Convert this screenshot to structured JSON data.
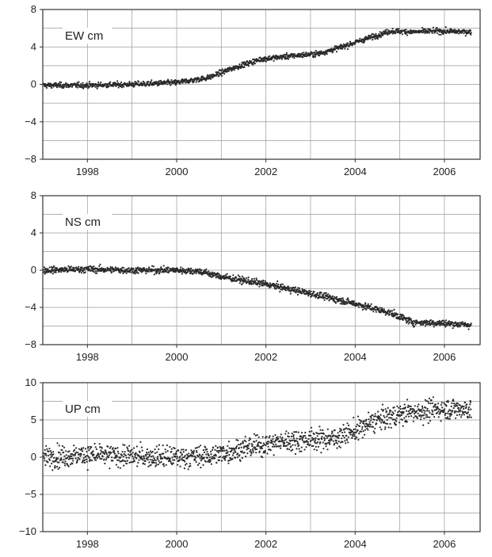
{
  "chart_data": [
    {
      "type": "scatter",
      "label": "EW cm",
      "xlim": [
        1997.0,
        2006.8
      ],
      "ylim": [
        -8,
        8
      ],
      "yticks": [
        8,
        4,
        0,
        -4,
        -8
      ],
      "xticks": [
        1998,
        2000,
        2002,
        2004,
        2006
      ],
      "grid": true,
      "color": "#2a2a2a",
      "noise": 0.2,
      "trend": [
        {
          "x": 1997.0,
          "y": -0.1
        },
        {
          "x": 1998.0,
          "y": -0.1
        },
        {
          "x": 1999.0,
          "y": 0.0
        },
        {
          "x": 2000.0,
          "y": 0.2
        },
        {
          "x": 2000.7,
          "y": 0.7
        },
        {
          "x": 2001.3,
          "y": 1.8
        },
        {
          "x": 2001.9,
          "y": 2.7
        },
        {
          "x": 2002.5,
          "y": 3.0
        },
        {
          "x": 2003.2,
          "y": 3.3
        },
        {
          "x": 2003.7,
          "y": 4.0
        },
        {
          "x": 2004.2,
          "y": 4.8
        },
        {
          "x": 2004.8,
          "y": 5.7
        },
        {
          "x": 2005.3,
          "y": 5.6
        },
        {
          "x": 2005.8,
          "y": 5.7
        },
        {
          "x": 2006.6,
          "y": 5.6
        }
      ]
    },
    {
      "type": "scatter",
      "label": "NS cm",
      "xlim": [
        1997.0,
        2006.8
      ],
      "ylim": [
        -8,
        8
      ],
      "yticks": [
        8,
        4,
        0,
        -4,
        -8
      ],
      "xticks": [
        1998,
        2000,
        2002,
        2004,
        2006
      ],
      "grid": true,
      "color": "#2a2a2a",
      "noise": 0.25,
      "trend": [
        {
          "x": 1997.0,
          "y": 0.0
        },
        {
          "x": 1998.0,
          "y": 0.1
        },
        {
          "x": 1999.0,
          "y": 0.0
        },
        {
          "x": 2000.0,
          "y": 0.0
        },
        {
          "x": 2000.5,
          "y": -0.1
        },
        {
          "x": 2001.0,
          "y": -0.7
        },
        {
          "x": 2002.0,
          "y": -1.5
        },
        {
          "x": 2003.0,
          "y": -2.5
        },
        {
          "x": 2004.0,
          "y": -3.6
        },
        {
          "x": 2004.8,
          "y": -4.6
        },
        {
          "x": 2005.3,
          "y": -5.6
        },
        {
          "x": 2006.0,
          "y": -5.7
        },
        {
          "x": 2006.6,
          "y": -5.9
        }
      ]
    },
    {
      "type": "scatter",
      "label": "UP cm",
      "xlim": [
        1997.0,
        2006.8
      ],
      "ylim": [
        -10,
        10
      ],
      "yticks": [
        10,
        5,
        0,
        -5,
        -10
      ],
      "xticks": [
        1998,
        2000,
        2002,
        2004,
        2006
      ],
      "grid": true,
      "color": "#2a2a2a",
      "noise": 1.0,
      "trend": [
        {
          "x": 1997.0,
          "y": 0.0
        },
        {
          "x": 1998.0,
          "y": 0.3
        },
        {
          "x": 1999.0,
          "y": 0.1
        },
        {
          "x": 2000.0,
          "y": 0.0
        },
        {
          "x": 2000.8,
          "y": 0.2
        },
        {
          "x": 2001.5,
          "y": 1.2
        },
        {
          "x": 2002.5,
          "y": 2.2
        },
        {
          "x": 2003.5,
          "y": 2.5
        },
        {
          "x": 2004.0,
          "y": 3.5
        },
        {
          "x": 2004.5,
          "y": 5.0
        },
        {
          "x": 2005.2,
          "y": 6.0
        },
        {
          "x": 2006.0,
          "y": 6.5
        },
        {
          "x": 2006.6,
          "y": 6.5
        }
      ]
    }
  ]
}
